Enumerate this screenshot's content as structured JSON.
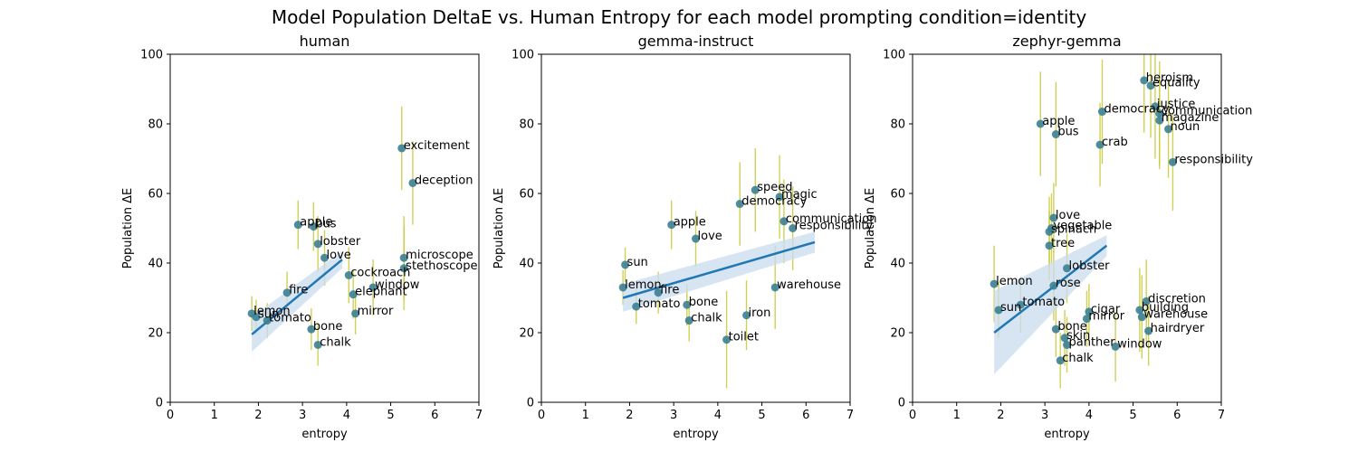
{
  "chart_data": [
    {
      "type": "scatter",
      "title": "human",
      "xlabel": "entropy",
      "ylabel": "Population ΔE",
      "xlim": [
        0,
        7
      ],
      "ylim": [
        0,
        100
      ],
      "xticks": [
        0,
        1,
        2,
        3,
        4,
        5,
        6,
        7
      ],
      "yticks": [
        0,
        20,
        40,
        60,
        80,
        100
      ],
      "grid": false,
      "regression": {
        "x0": 1.85,
        "y0": 19.5,
        "x1": 3.9,
        "y1": 41,
        "ci_low_start": 14.5,
        "ci_high_start": 24.5,
        "ci_low_end": 38.5,
        "ci_high_end": 43.5
      },
      "points": [
        {
          "label": "lemon",
          "x": 1.85,
          "y": 25.5,
          "err": 5
        },
        {
          "label": "sun",
          "x": 1.95,
          "y": 24.5,
          "err": 5
        },
        {
          "label": "tomato",
          "x": 2.2,
          "y": 23.5,
          "err": 5
        },
        {
          "label": "apple",
          "x": 2.9,
          "y": 51,
          "err": 7
        },
        {
          "label": "bus",
          "x": 3.25,
          "y": 50.5,
          "err": 7
        },
        {
          "label": "bone",
          "x": 3.2,
          "y": 21,
          "err": 6
        },
        {
          "label": "chalk",
          "x": 3.35,
          "y": 16.5,
          "err": 6
        },
        {
          "label": "mirror",
          "x": 4.2,
          "y": 25.5,
          "err": 6
        },
        {
          "label": "fire",
          "x": 2.65,
          "y": 31.5,
          "err": 6
        },
        {
          "label": "elephant",
          "x": 4.15,
          "y": 31,
          "err": 7
        },
        {
          "label": "window",
          "x": 4.6,
          "y": 33,
          "err": 8
        },
        {
          "label": "lobster",
          "x": 3.35,
          "y": 45.5,
          "err": 8
        },
        {
          "label": "love",
          "x": 3.5,
          "y": 41.5,
          "err": 8
        },
        {
          "label": "cockroach",
          "x": 4.05,
          "y": 36.5,
          "err": 8
        },
        {
          "label": "excitement",
          "x": 5.25,
          "y": 73,
          "err": 12
        },
        {
          "label": "deception",
          "x": 5.5,
          "y": 63,
          "err": 12
        },
        {
          "label": "microscope",
          "x": 5.3,
          "y": 41.5,
          "err": 12
        },
        {
          "label": "stethoscope",
          "x": 5.3,
          "y": 38.5,
          "err": 12
        }
      ]
    },
    {
      "type": "scatter",
      "title": "gemma-instruct",
      "xlabel": "entropy",
      "ylabel": "Population ΔE",
      "xlim": [
        0,
        7
      ],
      "ylim": [
        0,
        100
      ],
      "xticks": [
        0,
        1,
        2,
        3,
        4,
        5,
        6,
        7
      ],
      "yticks": [
        0,
        20,
        40,
        60,
        80,
        100
      ],
      "grid": false,
      "regression": {
        "x0": 1.85,
        "y0": 30,
        "x1": 6.2,
        "y1": 46,
        "ci_low_start": 26,
        "ci_high_start": 34,
        "ci_low_end": 43,
        "ci_high_end": 49
      },
      "points": [
        {
          "label": "sun",
          "x": 1.9,
          "y": 39.5,
          "err": 5
        },
        {
          "label": "lemon",
          "x": 1.85,
          "y": 33,
          "err": 5
        },
        {
          "label": "tomato",
          "x": 2.15,
          "y": 27.5,
          "err": 5
        },
        {
          "label": "fire",
          "x": 2.65,
          "y": 31.5,
          "err": 6
        },
        {
          "label": "apple",
          "x": 2.95,
          "y": 51,
          "err": 7
        },
        {
          "label": "bone",
          "x": 3.3,
          "y": 28,
          "err": 6
        },
        {
          "label": "chalk",
          "x": 3.35,
          "y": 23.5,
          "err": 6
        },
        {
          "label": "toilet",
          "x": 4.2,
          "y": 18,
          "err": 14
        },
        {
          "label": "iron",
          "x": 4.65,
          "y": 25,
          "err": 10
        },
        {
          "label": "love",
          "x": 3.5,
          "y": 47,
          "err": 8
        },
        {
          "label": "speed",
          "x": 4.85,
          "y": 61,
          "err": 12
        },
        {
          "label": "democracy",
          "x": 4.5,
          "y": 57,
          "err": 12
        },
        {
          "label": "magic",
          "x": 5.4,
          "y": 59,
          "err": 12
        },
        {
          "label": "communication",
          "x": 5.5,
          "y": 52,
          "err": 12
        },
        {
          "label": "responsibility",
          "x": 5.7,
          "y": 50,
          "err": 12
        },
        {
          "label": "warehouse",
          "x": 5.3,
          "y": 33,
          "err": 12
        }
      ]
    },
    {
      "type": "scatter",
      "title": "zephyr-gemma",
      "xlabel": "entropy",
      "ylabel": "Population ΔE",
      "xlim": [
        0,
        7
      ],
      "ylim": [
        0,
        100
      ],
      "xticks": [
        0,
        1,
        2,
        3,
        4,
        5,
        6,
        7
      ],
      "yticks": [
        0,
        20,
        40,
        60,
        80,
        100
      ],
      "grid": false,
      "regression": {
        "x0": 1.85,
        "y0": 20,
        "x1": 4.4,
        "y1": 45,
        "ci_low_start": 8,
        "ci_high_start": 32,
        "ci_low_end": 42,
        "ci_high_end": 48
      },
      "points": [
        {
          "label": "lemon",
          "x": 1.85,
          "y": 34,
          "err": 11
        },
        {
          "label": "sun",
          "x": 1.95,
          "y": 26.5,
          "err": 8
        },
        {
          "label": "tomato",
          "x": 2.45,
          "y": 28,
          "err": 8
        },
        {
          "label": "apple",
          "x": 2.9,
          "y": 80,
          "err": 15
        },
        {
          "label": "bus",
          "x": 3.25,
          "y": 77,
          "err": 15
        },
        {
          "label": "heroism",
          "x": 5.25,
          "y": 92.5,
          "err": 15
        },
        {
          "label": "equality",
          "x": 5.4,
          "y": 91,
          "err": 15
        },
        {
          "label": "justice",
          "x": 5.5,
          "y": 85,
          "err": 15
        },
        {
          "label": "communication",
          "x": 5.6,
          "y": 83,
          "err": 15
        },
        {
          "label": "democracy",
          "x": 4.3,
          "y": 83.5,
          "err": 15
        },
        {
          "label": "magazine",
          "x": 5.6,
          "y": 81,
          "err": 14
        },
        {
          "label": "noun",
          "x": 5.8,
          "y": 78.5,
          "err": 14
        },
        {
          "label": "crab",
          "x": 4.25,
          "y": 74,
          "err": 12
        },
        {
          "label": "responsibility",
          "x": 5.9,
          "y": 69,
          "err": 14
        },
        {
          "label": "love",
          "x": 3.2,
          "y": 53,
          "err": 10
        },
        {
          "label": "vegetable",
          "x": 3.15,
          "y": 50,
          "err": 10
        },
        {
          "label": "spinach",
          "x": 3.1,
          "y": 49,
          "err": 10
        },
        {
          "label": "tree",
          "x": 3.1,
          "y": 45,
          "err": 10
        },
        {
          "label": "lobster",
          "x": 3.5,
          "y": 38.5,
          "err": 10
        },
        {
          "label": "rose",
          "x": 3.2,
          "y": 33.5,
          "err": 10
        },
        {
          "label": "bone",
          "x": 3.25,
          "y": 21,
          "err": 8
        },
        {
          "label": "skin",
          "x": 3.45,
          "y": 18.5,
          "err": 8
        },
        {
          "label": "panther",
          "x": 3.5,
          "y": 16.5,
          "err": 8
        },
        {
          "label": "chalk",
          "x": 3.35,
          "y": 12,
          "err": 8
        },
        {
          "label": "window",
          "x": 4.6,
          "y": 16,
          "err": 10
        },
        {
          "label": "hairdryer",
          "x": 5.35,
          "y": 20.5,
          "err": 10
        },
        {
          "label": "warehouse",
          "x": 5.2,
          "y": 24.5,
          "err": 12
        },
        {
          "label": "building",
          "x": 5.15,
          "y": 26.5,
          "err": 12
        },
        {
          "label": "discretion",
          "x": 5.3,
          "y": 29,
          "err": 12
        },
        {
          "label": "mirror",
          "x": 3.95,
          "y": 24,
          "err": 8
        },
        {
          "label": "cigar",
          "x": 4.0,
          "y": 26,
          "err": 8
        }
      ]
    }
  ]
}
